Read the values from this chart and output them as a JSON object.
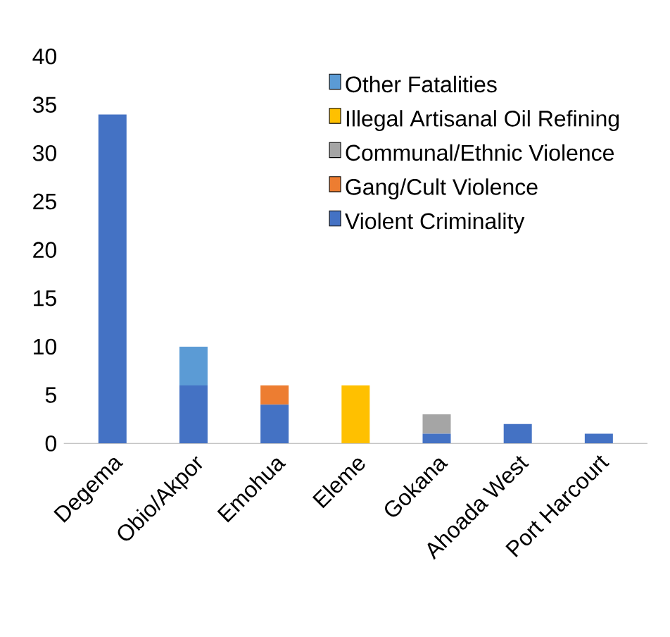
{
  "chart_data": {
    "type": "bar",
    "stacked": true,
    "categories": [
      "Degema",
      "Obio/Akpor",
      "Emohua",
      "Eleme",
      "Gokana",
      "Ahoada West",
      "Port Harcourt"
    ],
    "series": [
      {
        "name": "Violent Criminality",
        "color": "#4472c4",
        "values": [
          34,
          6,
          4,
          0,
          1,
          2,
          1
        ]
      },
      {
        "name": "Gang/Cult Violence",
        "color": "#ed7d31",
        "values": [
          0,
          0,
          2,
          0,
          0,
          0,
          0
        ]
      },
      {
        "name": "Communal/Ethnic Violence",
        "color": "#a5a5a5",
        "values": [
          0,
          0,
          0,
          0,
          2,
          0,
          0
        ]
      },
      {
        "name": "Illegal Artisanal Oil Refining",
        "color": "#ffc000",
        "values": [
          0,
          0,
          0,
          6,
          0,
          0,
          0
        ]
      },
      {
        "name": "Other Fatalities",
        "color": "#5b9bd5",
        "values": [
          0,
          4,
          0,
          0,
          0,
          0,
          0
        ]
      }
    ],
    "ylim": [
      0,
      40
    ],
    "yticks": [
      0,
      5,
      10,
      15,
      20,
      25,
      30,
      35,
      40
    ],
    "grid": false,
    "legend": "top right"
  }
}
